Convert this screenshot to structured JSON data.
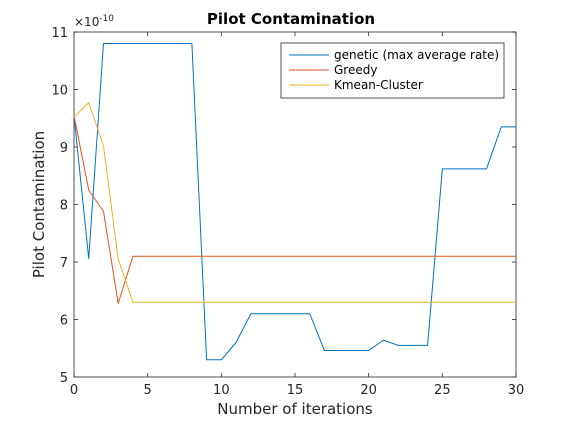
{
  "chart_data": {
    "type": "line",
    "title": "Pilot Contamination",
    "xlabel": "Number of iterations",
    "ylabel": "Pilot Contamination",
    "y_exponent": {
      "base": "×10",
      "power": "-10"
    },
    "xlim": [
      0,
      30
    ],
    "ylim": [
      5,
      11
    ],
    "x_ticks": [
      0,
      5,
      10,
      15,
      20,
      25,
      30
    ],
    "x_tick_labels": [
      "0",
      "5",
      "10",
      "15",
      "20",
      "25",
      "30"
    ],
    "y_ticks": [
      5,
      6,
      7,
      8,
      9,
      10,
      11
    ],
    "y_tick_labels": [
      "5",
      "6",
      "7",
      "8",
      "9",
      "10",
      "11"
    ],
    "grid": false,
    "legend_position": "top-right",
    "x": [
      0,
      1,
      2,
      3,
      4,
      5,
      6,
      7,
      8,
      9,
      10,
      11,
      12,
      13,
      14,
      15,
      16,
      17,
      18,
      19,
      20,
      21,
      22,
      23,
      24,
      25,
      26,
      27,
      28,
      29,
      30
    ],
    "series": [
      {
        "name": "genetic (max average rate)",
        "color": "#0072BD",
        "values": [
          9.55,
          7.06,
          10.8,
          10.8,
          10.8,
          10.8,
          10.8,
          10.8,
          10.8,
          5.3,
          5.3,
          5.6,
          6.1,
          6.1,
          6.1,
          6.1,
          6.1,
          5.46,
          5.46,
          5.46,
          5.46,
          5.64,
          5.55,
          5.55,
          5.55,
          8.62,
          8.62,
          8.62,
          8.62,
          9.35,
          9.35
        ]
      },
      {
        "name": "Greedy",
        "color": "#D95319",
        "values": [
          9.55,
          8.25,
          7.88,
          6.28,
          7.1,
          7.1,
          7.1,
          7.1,
          7.1,
          7.1,
          7.1,
          7.1,
          7.1,
          7.1,
          7.1,
          7.1,
          7.1,
          7.1,
          7.1,
          7.1,
          7.1,
          7.1,
          7.1,
          7.1,
          7.1,
          7.1,
          7.1,
          7.1,
          7.1,
          7.1,
          7.1
        ]
      },
      {
        "name": "Kmean-Cluster",
        "color": "#EDB120",
        "values": [
          9.52,
          9.77,
          9.02,
          7.05,
          6.3,
          6.3,
          6.3,
          6.3,
          6.3,
          6.3,
          6.3,
          6.3,
          6.3,
          6.3,
          6.3,
          6.3,
          6.3,
          6.3,
          6.3,
          6.3,
          6.3,
          6.3,
          6.3,
          6.3,
          6.3,
          6.3,
          6.3,
          6.3,
          6.3,
          6.3,
          6.3
        ]
      }
    ]
  }
}
